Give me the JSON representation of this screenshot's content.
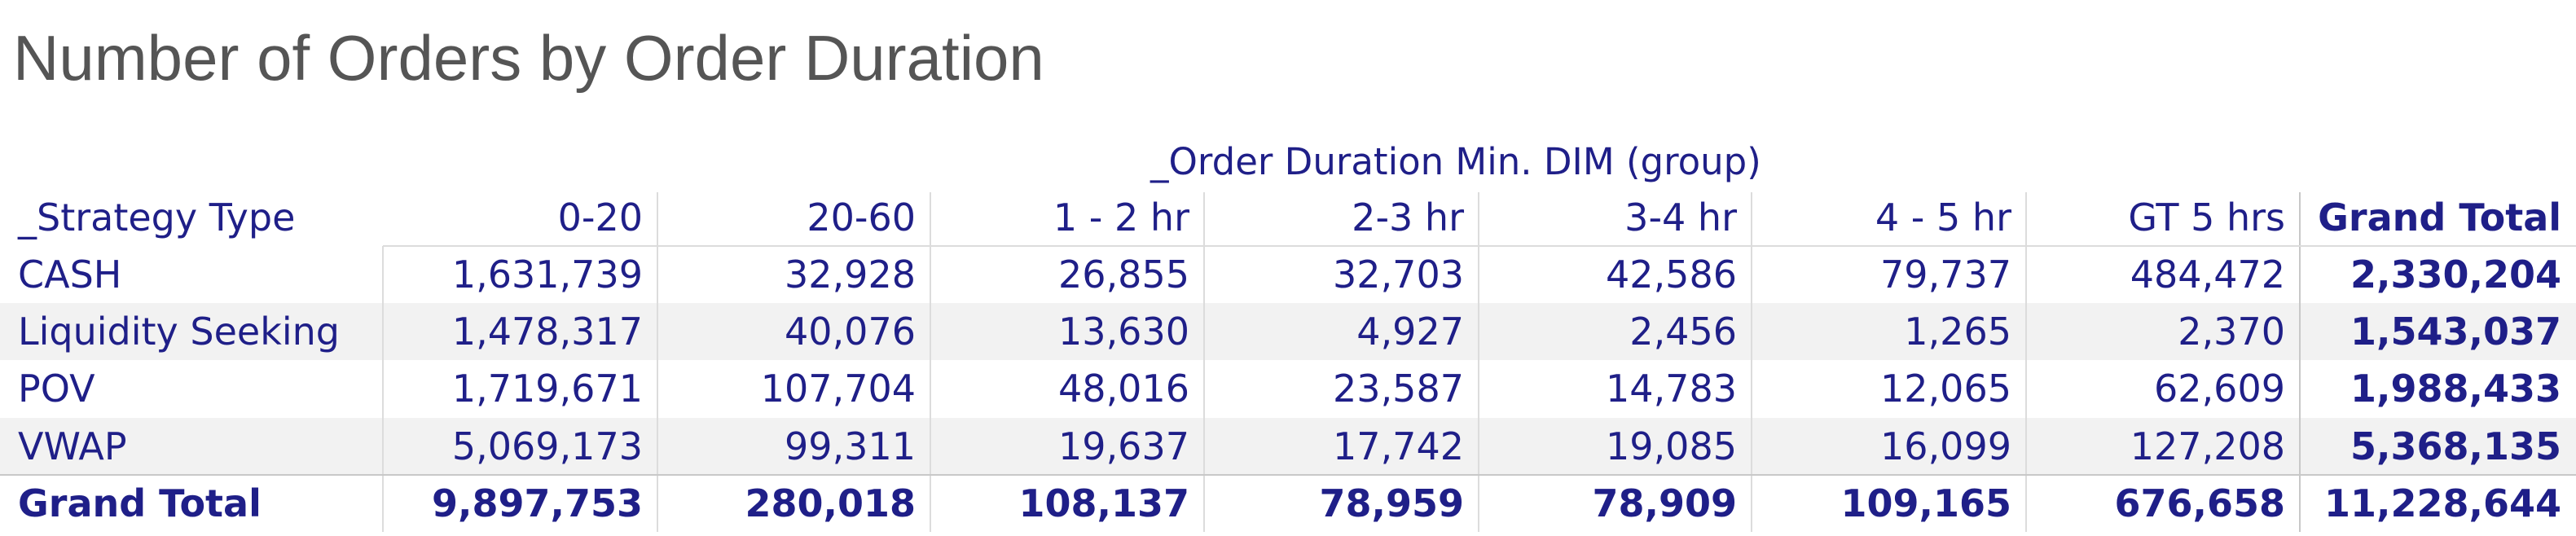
{
  "title": "Number of Orders by Order Duration",
  "column_group": "_Order Duration Min. DIM (group)",
  "table": {
    "header": [
      "_Strategy Type",
      "0-20",
      "20-60",
      "1 - 2 hr",
      "2-3 hr",
      "3-4 hr",
      "4 - 5 hr",
      "GT 5 hrs",
      "Grand Total"
    ],
    "rows": [
      [
        "CASH",
        "1,631,739",
        "32,928",
        "26,855",
        "32,703",
        "42,586",
        "79,737",
        "484,472",
        "2,330,204"
      ],
      [
        "Liquidity Seeking",
        "1,478,317",
        "40,076",
        "13,630",
        "4,927",
        "2,456",
        "1,265",
        "2,370",
        "1,543,037"
      ],
      [
        "POV",
        "1,719,671",
        "107,704",
        "48,016",
        "23,587",
        "14,783",
        "12,065",
        "62,609",
        "1,988,433"
      ],
      [
        "VWAP",
        "5,069,173",
        "99,311",
        "19,637",
        "17,742",
        "19,085",
        "16,099",
        "127,208",
        "5,368,135"
      ],
      [
        "Grand Total",
        "9,897,753",
        "280,018",
        "108,137",
        "78,959",
        "78,909",
        "109,165",
        "676,658",
        "11,228,644"
      ]
    ]
  }
}
